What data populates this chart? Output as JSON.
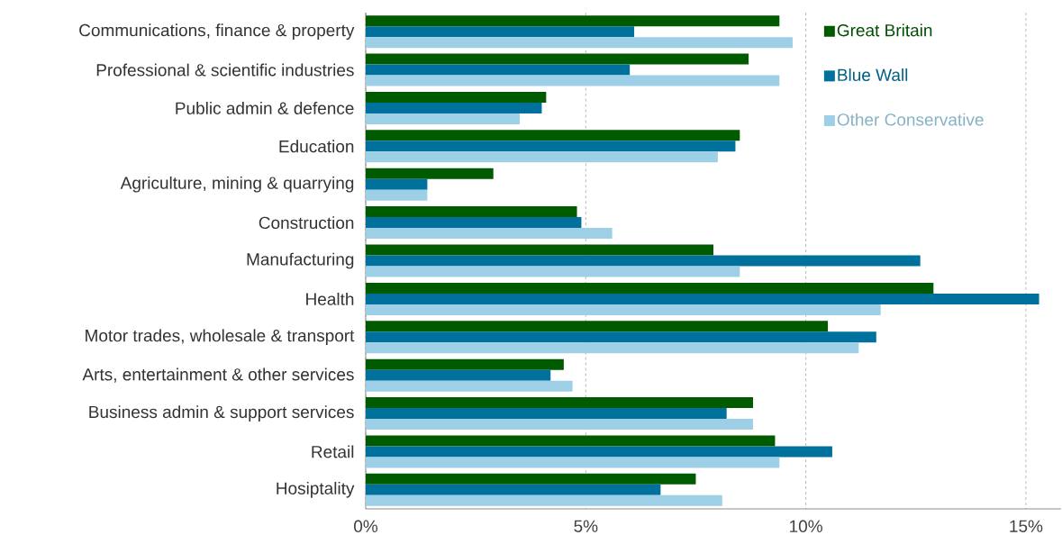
{
  "chart_data": {
    "type": "bar",
    "orientation": "horizontal",
    "categories": [
      "Communications, finance & property",
      "Professional & scientific industries",
      "Public admin & defence",
      "Education",
      "Agriculture, mining & quarrying",
      "Construction",
      "Manufacturing",
      "Health",
      "Motor trades, wholesale & transport",
      "Arts, entertainment & other services",
      "Business admin & support services",
      "Retail",
      "Hosiptality"
    ],
    "series": [
      {
        "name": "Great Britain",
        "color": "#005a00",
        "values": [
          9.4,
          8.7,
          4.1,
          8.5,
          2.9,
          4.8,
          7.9,
          12.9,
          10.5,
          4.5,
          8.8,
          9.3,
          7.5
        ]
      },
      {
        "name": "Blue Wall",
        "color": "#00709c",
        "values": [
          6.1,
          6.0,
          4.0,
          8.4,
          1.4,
          4.9,
          12.6,
          15.3,
          11.6,
          4.2,
          8.2,
          10.6,
          6.7
        ]
      },
      {
        "name": "Other Conservative",
        "color": "#9dd0e6",
        "values": [
          9.7,
          9.4,
          3.5,
          8.0,
          1.4,
          5.6,
          8.5,
          11.7,
          11.2,
          4.7,
          8.8,
          9.4,
          8.1
        ]
      }
    ],
    "xlim": [
      0,
      15.8
    ],
    "xticks": [
      {
        "value": 0,
        "label": "0%"
      },
      {
        "value": 5,
        "label": "5%"
      },
      {
        "value": 10,
        "label": "10%"
      },
      {
        "value": 15,
        "label": "15%"
      }
    ],
    "grid": "x",
    "legend": "top right"
  }
}
